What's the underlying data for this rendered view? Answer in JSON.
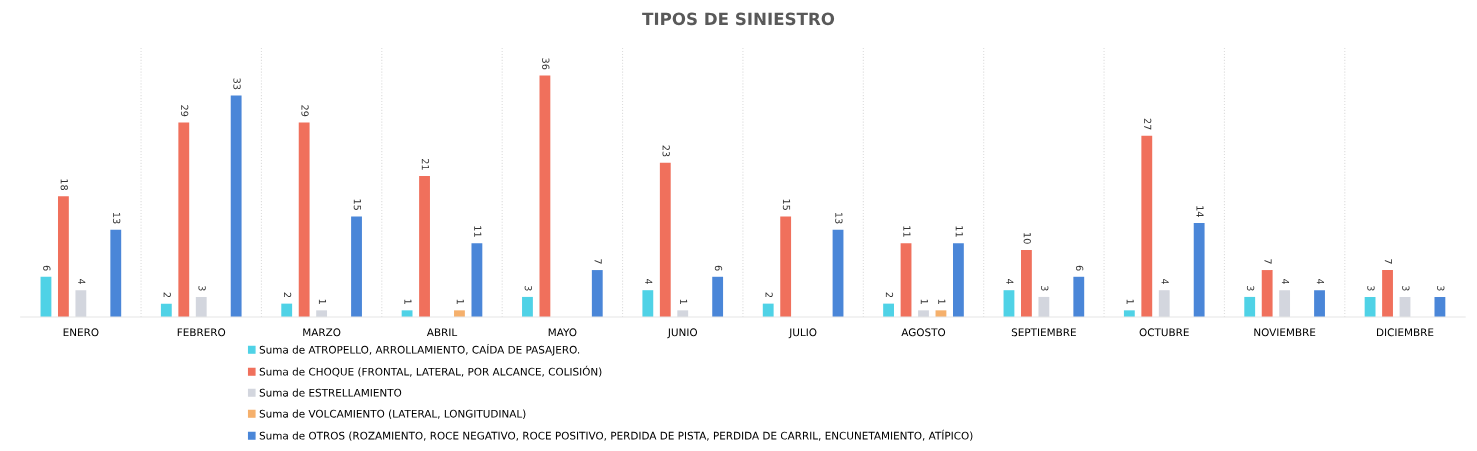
{
  "chart_data": {
    "type": "bar",
    "title": "TIPOS DE SINIESTRO",
    "categories": [
      "ENERO",
      "FEBRERO",
      "MARZO",
      "ABRIL",
      "MAYO",
      "JUNIO",
      "JULIO",
      "AGOSTO",
      "SEPTIEMBRE",
      "OCTUBRE",
      "NOVIEMBRE",
      "DICIEMBRE"
    ],
    "series": [
      {
        "name": "Suma de ATROPELLO, ARROLLAMIENTO, CAÍDA DE PASAJERO.",
        "color": "#4fd2e6",
        "values": [
          6,
          2,
          2,
          1,
          3,
          4,
          2,
          2,
          4,
          1,
          3,
          3
        ]
      },
      {
        "name": "Suma de CHOQUE (FRONTAL, LATERAL, POR ALCANCE, COLISIÓN)",
        "color": "#f0705c",
        "values": [
          18,
          29,
          29,
          21,
          36,
          23,
          15,
          11,
          10,
          27,
          7,
          7
        ]
      },
      {
        "name": "Suma de ESTRELLAMIENTO",
        "color": "#d3d6de",
        "values": [
          4,
          3,
          1,
          null,
          null,
          1,
          null,
          1,
          3,
          4,
          4,
          3
        ]
      },
      {
        "name": "Suma de VOLCAMIENTO (LATERAL, LONGITUDINAL)",
        "color": "#f5b06c",
        "values": [
          null,
          null,
          null,
          1,
          null,
          null,
          null,
          1,
          null,
          null,
          null,
          null
        ]
      },
      {
        "name": "Suma de OTROS (ROZAMIENTO, ROCE NEGATIVO, ROCE POSITIVO, PERDIDA DE PISTA, PERDIDA DE CARRIL, ENCUNETAMIENTO, ATÍPICO)",
        "color": "#4a86d8",
        "values": [
          13,
          33,
          15,
          11,
          7,
          6,
          13,
          11,
          6,
          14,
          4,
          3
        ]
      }
    ],
    "data_labels": true,
    "grid": "x",
    "legend": "bottom"
  }
}
